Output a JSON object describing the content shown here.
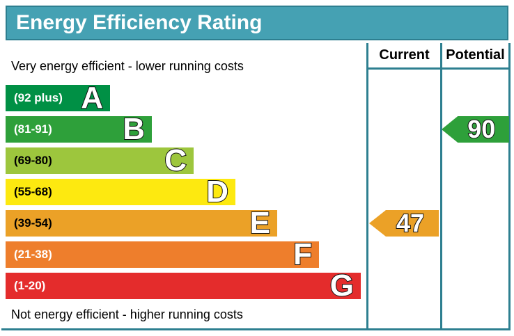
{
  "title": "Energy Efficiency Rating",
  "colors": {
    "header_bg": "#45a1b3",
    "border": "#2d7f90"
  },
  "chart_data": {
    "type": "bar",
    "subtype": "epc-energy-efficiency-rating",
    "title": "Energy Efficiency Rating",
    "columns": [
      "Current",
      "Potential"
    ],
    "annotations": {
      "top": "Very energy efficient - lower running costs",
      "bottom": "Not energy efficient - higher running costs"
    },
    "bands": [
      {
        "letter": "A",
        "label": "(92 plus)",
        "min": 92,
        "max": 100,
        "color": "#009045",
        "label_color": "#ffffff"
      },
      {
        "letter": "B",
        "label": "(81-91)",
        "min": 81,
        "max": 91,
        "color": "#2ea03a",
        "label_color": "#ffffff"
      },
      {
        "letter": "C",
        "label": "(69-80)",
        "min": 69,
        "max": 80,
        "color": "#9dc63d",
        "label_color": "#000000"
      },
      {
        "letter": "D",
        "label": "(55-68)",
        "min": 55,
        "max": 68,
        "color": "#fde910",
        "label_color": "#000000"
      },
      {
        "letter": "E",
        "label": "(39-54)",
        "min": 39,
        "max": 54,
        "color": "#eba127",
        "label_color": "#000000"
      },
      {
        "letter": "F",
        "label": "(21-38)",
        "min": 21,
        "max": 38,
        "color": "#ee7e2c",
        "label_color": "#ffffff"
      },
      {
        "letter": "G",
        "label": "(1-20)",
        "min": 1,
        "max": 20,
        "color": "#e42c2c",
        "label_color": "#ffffff"
      }
    ],
    "current": {
      "value": 47,
      "band": "E"
    },
    "potential": {
      "value": 90,
      "band": "B"
    }
  }
}
